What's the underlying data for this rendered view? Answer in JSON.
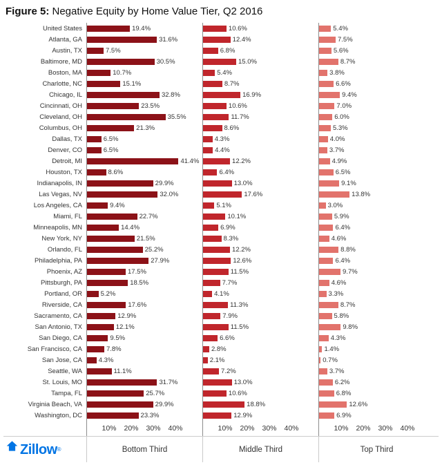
{
  "header": {
    "prefix": "Figure 5:",
    "text": " Negative Equity by Home Value Tier, Q2 2016"
  },
  "logo": {
    "text": "Zillow",
    "registered": "®"
  },
  "chart_data": {
    "type": "bar",
    "orientation": "horizontal",
    "title": "Figure 5: Negative Equity by Home Value Tier, Q2 2016",
    "panels": [
      "Bottom Third",
      "Middle Third",
      "Top Third"
    ],
    "axis": {
      "ticks": [
        "10%",
        "20%",
        "30%",
        "40%"
      ],
      "tick_values": [
        10,
        20,
        30,
        40
      ],
      "xlim": [
        0,
        45
      ],
      "unit": "%"
    },
    "colors": {
      "bottom_third_bar": "#8c1218",
      "middle_third_bar": "#c0262c",
      "top_third_bar": "#e2736c"
    },
    "categories": [
      "United States",
      "Atlanta, GA",
      "Austin, TX",
      "Baltimore, MD",
      "Boston, MA",
      "Charlotte, NC",
      "Chicago, IL",
      "Cincinnati, OH",
      "Cleveland, OH",
      "Columbus, OH",
      "Dallas, TX",
      "Denver, CO",
      "Detroit, MI",
      "Houston, TX",
      "Indianapolis, IN",
      "Las Vegas, NV",
      "Los Angeles, CA",
      "Miami, FL",
      "Minneapolis, MN",
      "New York, NY",
      "Orlando, FL",
      "Philadelphia, PA",
      "Phoenix, AZ",
      "Pittsburgh, PA",
      "Portland, OR",
      "Riverside, CA",
      "Sacramento, CA",
      "San Antonio, TX",
      "San Diego, CA",
      "San Francisco, CA",
      "San Jose, CA",
      "Seattle, WA",
      "St. Louis, MO",
      "Tampa, FL",
      "Virginia Beach, VA",
      "Washington, DC"
    ],
    "series": [
      {
        "name": "Bottom Third",
        "values": [
          19.4,
          31.6,
          7.5,
          30.5,
          10.7,
          15.1,
          32.8,
          23.5,
          35.5,
          21.3,
          6.5,
          6.5,
          41.4,
          8.6,
          29.9,
          32.0,
          9.4,
          22.7,
          14.4,
          21.5,
          25.2,
          27.9,
          17.5,
          18.5,
          5.2,
          17.6,
          12.9,
          12.1,
          9.5,
          7.8,
          4.3,
          11.1,
          31.7,
          25.7,
          29.9,
          23.3
        ]
      },
      {
        "name": "Middle Third",
        "values": [
          10.6,
          12.4,
          6.8,
          15.0,
          5.4,
          8.7,
          16.9,
          10.6,
          11.7,
          8.6,
          4.3,
          4.4,
          12.2,
          6.4,
          13.0,
          17.6,
          5.1,
          10.1,
          6.9,
          8.3,
          12.2,
          12.6,
          11.5,
          7.7,
          4.1,
          11.3,
          7.9,
          11.5,
          6.6,
          2.8,
          2.1,
          7.2,
          13.0,
          10.6,
          18.8,
          12.9
        ]
      },
      {
        "name": "Top Third",
        "values": [
          5.4,
          7.5,
          5.6,
          8.7,
          3.8,
          6.6,
          9.4,
          7.0,
          6.0,
          5.3,
          4.0,
          3.7,
          4.9,
          6.5,
          9.1,
          13.8,
          3.0,
          5.9,
          6.4,
          4.6,
          8.8,
          6.4,
          9.7,
          4.6,
          3.3,
          8.7,
          5.8,
          9.8,
          4.3,
          1.4,
          0.7,
          3.7,
          6.2,
          6.8,
          12.6,
          6.9
        ]
      }
    ]
  }
}
